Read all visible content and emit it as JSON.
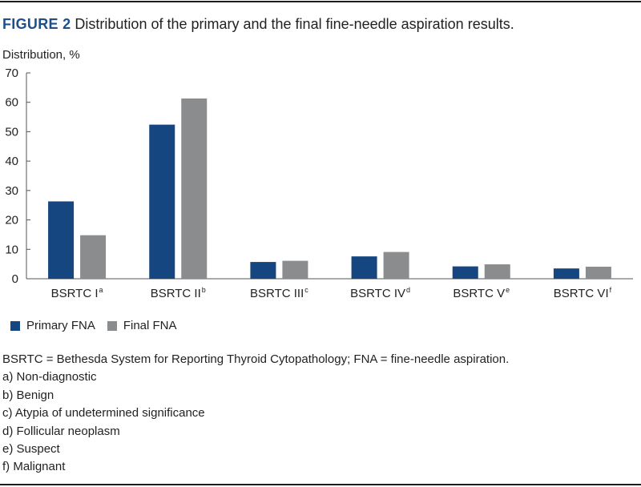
{
  "figure": {
    "label": "FIGURE 2",
    "title": "Distribution of the primary and the final fine-needle aspiration results."
  },
  "chart_data": {
    "type": "bar",
    "ylabel": "Distribution, %",
    "xlabel": "",
    "ylim": [
      0,
      70
    ],
    "yticks": [
      0,
      10,
      20,
      30,
      40,
      50,
      60,
      70
    ],
    "grid": false,
    "legend_position": "bottom-left",
    "categories": [
      {
        "name": "BSRTC I",
        "sup": "a"
      },
      {
        "name": "BSRTC II",
        "sup": "b"
      },
      {
        "name": "BSRTC III",
        "sup": "c"
      },
      {
        "name": "BSRTC IV",
        "sup": "d"
      },
      {
        "name": "BSRTC V",
        "sup": "e"
      },
      {
        "name": "BSRTC VI",
        "sup": "f"
      }
    ],
    "series": [
      {
        "name": "Primary FNA",
        "color": "#16467f",
        "values": [
          26.3,
          52.4,
          5.7,
          7.6,
          4.2,
          3.5
        ]
      },
      {
        "name": "Final FNA",
        "color": "#8a8c8e",
        "values": [
          14.8,
          61.3,
          6.1,
          9.1,
          4.9,
          4.1
        ]
      }
    ]
  },
  "footnotes": {
    "abbreviations": "BSRTC = Bethesda System for Reporting Thyroid Cytopathology; FNA = fine-needle aspiration.",
    "items": [
      "a) Non-diagnostic",
      "b) Benign",
      "c) Atypia of undetermined significance",
      "d) Follicular neoplasm",
      "e) Suspect",
      "f) Malignant"
    ]
  }
}
